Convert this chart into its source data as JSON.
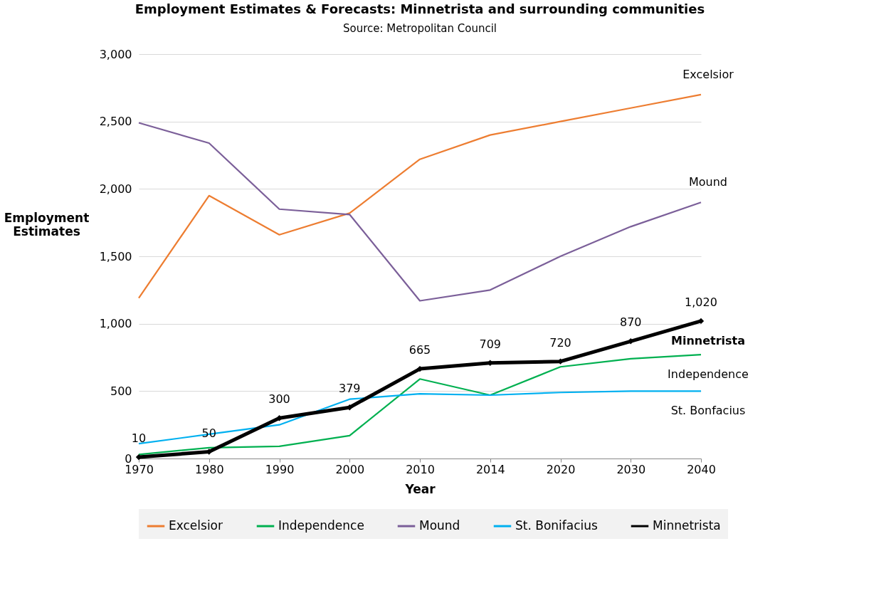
{
  "chart_data": {
    "type": "line",
    "title": "Employment Estimates & Forecasts: Minnetrista and surrounding communities",
    "subtitle": "Source: Metropolitan Council",
    "xlabel": "Year",
    "ylabel": "Employment Estimates",
    "categories": [
      "1970",
      "1980",
      "1990",
      "2000",
      "2010",
      "2014",
      "2020",
      "2030",
      "2040"
    ],
    "series": [
      {
        "name": "Excelsior",
        "color": "#ed7d31",
        "values": [
          1190,
          1950,
          1660,
          1820,
          2220,
          2400,
          2500,
          2600,
          2700
        ]
      },
      {
        "name": "Independence",
        "color": "#00b050",
        "values": [
          30,
          80,
          90,
          170,
          590,
          470,
          680,
          740,
          770
        ]
      },
      {
        "name": "Mound",
        "color": "#7b5f99",
        "values": [
          2490,
          2340,
          1850,
          1810,
          1170,
          1250,
          1500,
          1720,
          1900
        ]
      },
      {
        "name": "St. Bonifacius",
        "color": "#00b0f0",
        "values": [
          110,
          180,
          250,
          440,
          480,
          470,
          490,
          500,
          500
        ]
      },
      {
        "name": "Minnetrista",
        "color": "#000000",
        "marker": "diamond",
        "values": [
          10,
          50,
          300,
          379,
          665,
          709,
          720,
          870,
          1020
        ],
        "value_labels": [
          "10",
          "50",
          "300",
          "379",
          "665",
          "709",
          "720",
          "870",
          "1,020"
        ]
      }
    ],
    "ylim": [
      0,
      3000
    ],
    "yticks": [
      0,
      500,
      {
        "value": 1000,
        "label": "1,000"
      },
      {
        "value": 1500,
        "label": "1,500"
      },
      {
        "value": 2000,
        "label": "2,000"
      },
      {
        "value": 2500,
        "label": "2,500"
      },
      {
        "value": 3000,
        "label": "3,000"
      }
    ],
    "grid": "y",
    "legend": "bottom",
    "annotations": [
      {
        "text": "Excelsior",
        "x": "2040",
        "y": 2700
      },
      {
        "text": "Mound",
        "x": "2040",
        "y": 1900
      },
      {
        "text": "Minnetrista",
        "x": "2040",
        "y": 1020
      },
      {
        "text": "Independence",
        "x": "2040",
        "y": 770
      },
      {
        "text": "St. Bonfacius",
        "x": "2040",
        "y": 500
      }
    ]
  }
}
